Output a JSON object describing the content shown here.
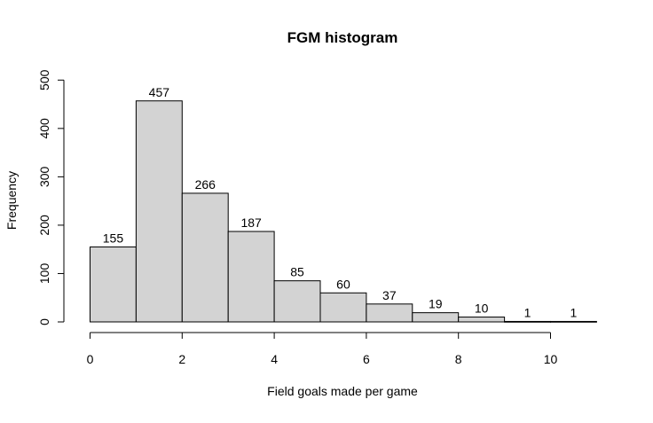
{
  "chart_data": {
    "type": "bar",
    "title": "FGM histogram",
    "xlabel": "Field goals made per game",
    "ylabel": "Frequency",
    "bins": [
      [
        0,
        1
      ],
      [
        1,
        2
      ],
      [
        2,
        3
      ],
      [
        3,
        4
      ],
      [
        4,
        5
      ],
      [
        5,
        6
      ],
      [
        6,
        7
      ],
      [
        7,
        8
      ],
      [
        8,
        9
      ],
      [
        9,
        10
      ],
      [
        10,
        11
      ]
    ],
    "values": [
      155,
      457,
      266,
      187,
      85,
      60,
      37,
      19,
      10,
      1,
      1
    ],
    "data_labels": [
      "155",
      "457",
      "266",
      "187",
      "85",
      "60",
      "37",
      "19",
      "10",
      "1",
      "1"
    ],
    "x_ticks": [
      "0",
      "2",
      "4",
      "6",
      "8",
      "10"
    ],
    "y_ticks": [
      "0",
      "100",
      "200",
      "300",
      "400",
      "500"
    ],
    "xlim": [
      0,
      10
    ],
    "ylim": [
      0,
      500
    ],
    "bar_fill": "#d3d3d3",
    "bar_stroke": "#000000",
    "grid": false,
    "legend": "none"
  }
}
